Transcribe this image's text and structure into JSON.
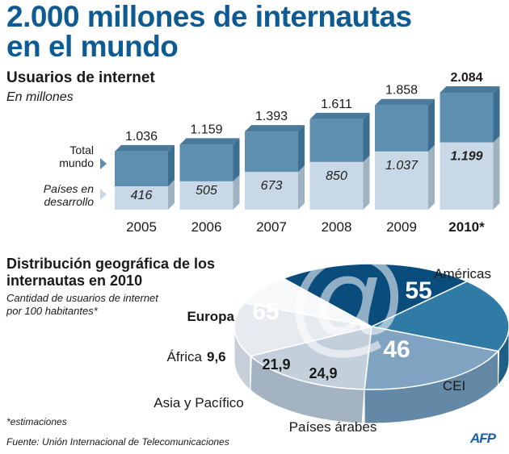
{
  "header": {
    "title": "2.000 millones de internautas en el mundo"
  },
  "bar_section": {
    "title": "Usuarios de internet",
    "subtitle": "En millones",
    "row_label_total": "Total mundo",
    "row_label_developing": "Países en desarrollo"
  },
  "pie_section": {
    "title": "Distribución geográfica de los internautas en 2010",
    "subtitle": "Cantidad de usuarios de internet por 100 habitantes*"
  },
  "footer": {
    "footnote": "*estimaciones",
    "source": "Fuente: Unión Internacional de Telecomunicaciones",
    "logo": "AFP"
  },
  "colors": {
    "title_blue": "#0e5a92",
    "bar_top": "#5f8fb0",
    "bar_bottom": "#c9d8e6",
    "europa": "#0a4c7c",
    "americas": "#2f7ba6",
    "cei": "#7fa3c0",
    "arabes": "#c3d0dc",
    "asia": "#e6ebf0",
    "africa": "#f7f8fa"
  },
  "chart_data": [
    {
      "type": "bar",
      "title": "Usuarios de internet",
      "subtitle": "En millones",
      "categories": [
        "2005",
        "2006",
        "2007",
        "2008",
        "2009",
        "2010*"
      ],
      "series": [
        {
          "name": "Total mundo",
          "values": [
            1036,
            1159,
            1393,
            1611,
            1858,
            2084
          ],
          "labels": [
            "1.036",
            "1.159",
            "1.393",
            "1.611",
            "1.858",
            "2.084"
          ]
        },
        {
          "name": "Países en desarrollo",
          "values": [
            416,
            505,
            673,
            850,
            1037,
            1199
          ],
          "labels": [
            "416",
            "505",
            "673",
            "850",
            "1.037",
            "1.199"
          ]
        }
      ],
      "highlight_category": "2010*"
    },
    {
      "type": "pie",
      "title": "Distribución geográfica de los internautas en 2010",
      "subtitle": "Cantidad de usuarios de internet por 100 habitantes*",
      "slices": [
        {
          "name": "Europa",
          "value": 65,
          "label": "65"
        },
        {
          "name": "Américas",
          "value": 55,
          "label": "55"
        },
        {
          "name": "CEI",
          "value": 46,
          "label": "46"
        },
        {
          "name": "Países árabes",
          "value": 24.9,
          "label": "24,9"
        },
        {
          "name": "Asia y Pacífico",
          "value": 21.9,
          "label": "21,9"
        },
        {
          "name": "África",
          "value": 9.6,
          "label": "9,6"
        }
      ]
    }
  ]
}
